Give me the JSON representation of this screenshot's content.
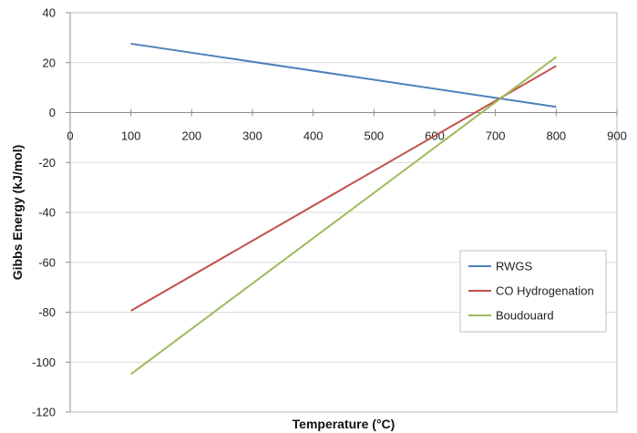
{
  "chart_data": {
    "type": "line",
    "title": "",
    "xlabel": "Temperature (°C)",
    "ylabel": "Gibbs Energy (kJ/mol)",
    "xlim": [
      0,
      900
    ],
    "ylim": [
      -120,
      40
    ],
    "xticks": [
      0,
      100,
      200,
      300,
      400,
      500,
      600,
      700,
      800,
      900
    ],
    "yticks": [
      40,
      20,
      0,
      -20,
      -40,
      -60,
      -80,
      -100,
      -120
    ],
    "grid": "horizontal",
    "legend_position": "right",
    "series": [
      {
        "name": "RWGS",
        "color": "#4f81bd",
        "x": [
          100,
          800
        ],
        "y": [
          27.6,
          2.3
        ]
      },
      {
        "name": "CO Hydrogenation",
        "color": "#c0504d",
        "x": [
          100,
          800
        ],
        "y": [
          -79.4,
          18.7
        ]
      },
      {
        "name": "Boudouard",
        "color": "#9bbb59",
        "x": [
          100,
          800
        ],
        "y": [
          -104.8,
          22.3
        ]
      }
    ]
  }
}
